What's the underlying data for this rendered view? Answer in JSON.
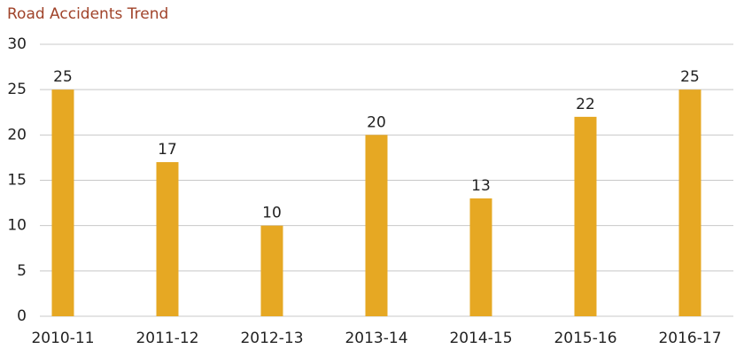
{
  "chart_data": {
    "type": "bar",
    "title": "Road Accidents Trend",
    "categories": [
      "2010-11",
      "2011-12",
      "2012-13",
      "2013-14",
      "2014-15",
      "2015-16",
      "2016-17"
    ],
    "values": [
      25,
      17,
      10,
      20,
      13,
      22,
      25
    ],
    "color": "#e6a823",
    "ylim": [
      0,
      30
    ],
    "yticks": [
      0,
      5,
      10,
      15,
      20,
      25,
      30
    ],
    "grid": true
  }
}
